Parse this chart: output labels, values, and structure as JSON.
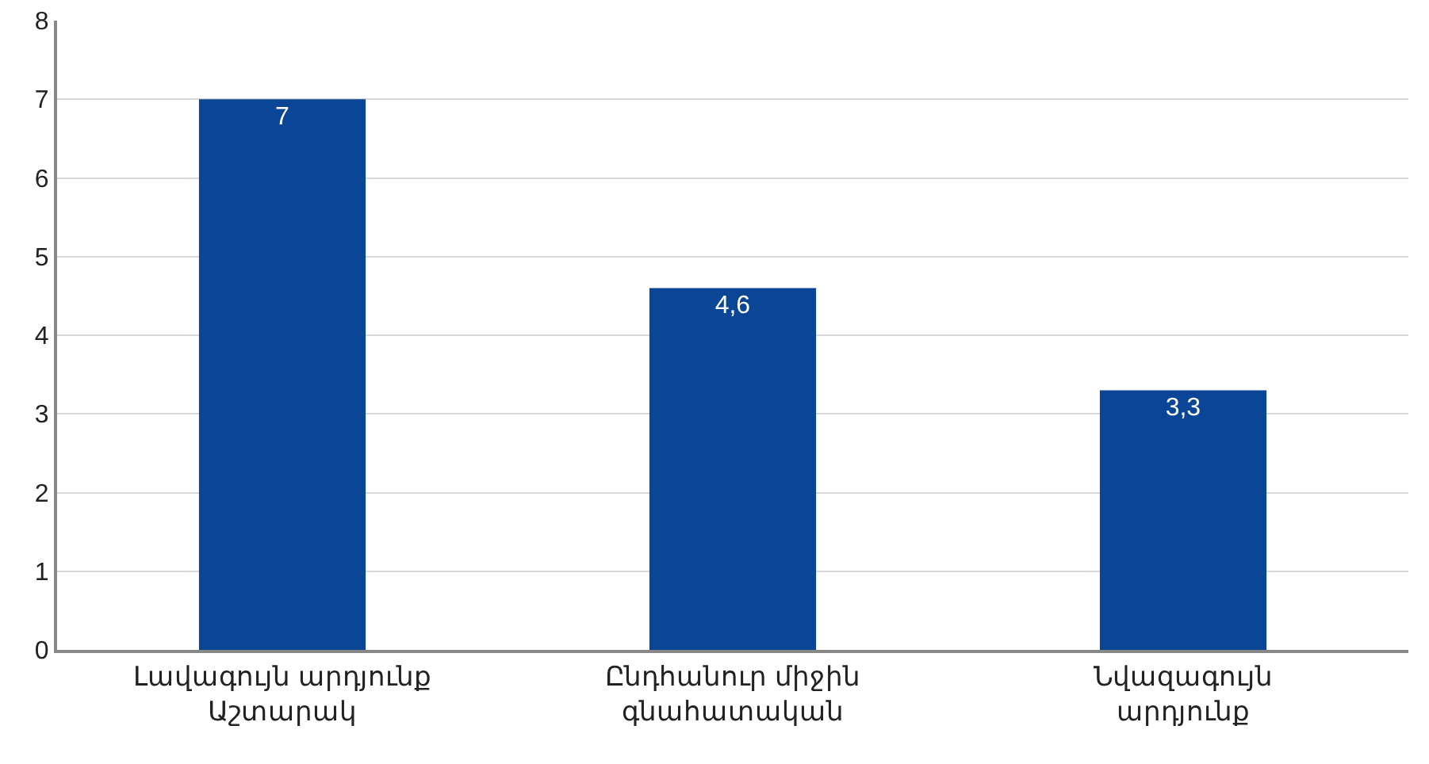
{
  "chart_data": {
    "type": "bar",
    "categories": [
      "Լավագույն արդյունք\nԱշտարակ",
      "Ընդհանուր միջին\nգնահատական",
      "Նվազագույն\nարդյունք"
    ],
    "values": [
      7,
      4.6,
      3.3
    ],
    "value_labels": [
      "7",
      "4,6",
      "3,3"
    ],
    "color": "#0b4595",
    "ylim": [
      0,
      8
    ],
    "yticks": [
      0,
      1,
      2,
      3,
      4,
      5,
      6,
      7,
      8
    ],
    "grid": "y"
  }
}
